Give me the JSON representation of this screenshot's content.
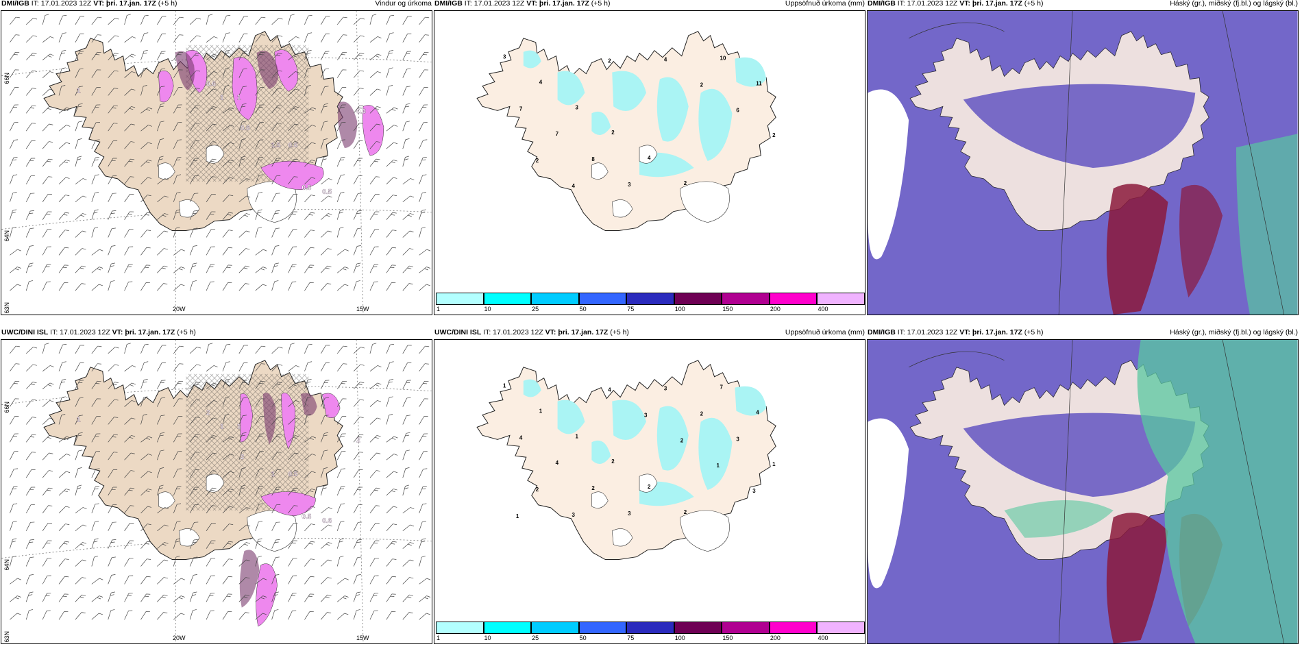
{
  "panels": [
    {
      "source": "DMI/IGB",
      "it": "IT: 17.01.2023 12Z",
      "vt": "VT: þri. 17.jan. 17Z",
      "lead": "(+5 h)",
      "title": "Vindur og úrkoma",
      "kind": "wind",
      "lat_labels": [
        "66N",
        "64N",
        "63N"
      ],
      "lon_labels": [
        "20W",
        "15W"
      ],
      "values": [
        "1",
        "0.6",
        "1",
        "1",
        "0.6",
        "1.5",
        "0.6",
        "0.5",
        "0.5",
        "0.6"
      ]
    },
    {
      "source": "DMI/IGB",
      "it": "IT: 17.01.2023 12Z",
      "vt": "VT: þri. 17.jan. 17Z",
      "lead": "(+5 h)",
      "title": "Uppsöfnuð úrkoma (mm)",
      "kind": "accum",
      "values": [
        "3",
        "4",
        "3",
        "2",
        "4",
        "2",
        "10",
        "11",
        "7",
        "7",
        "8",
        "3",
        "4",
        "2",
        "6",
        "2",
        "2",
        "4",
        "2"
      ]
    },
    {
      "source": "DMI/IGB",
      "it": "IT: 17.01.2023 12Z",
      "vt": "VT: þri. 17.jan. 17Z",
      "lead": "(+5 h)",
      "title": "Háský (gr.), miðský (fj.bl.) og lágský (bl.)",
      "kind": "cloud"
    },
    {
      "source": "UWC/DINI ISL",
      "it": "IT: 17.01.2023 12Z",
      "vt": "VT: þri. 17.jan. 17Z",
      "lead": "(+5 h)",
      "title": "",
      "kind": "wind",
      "lat_labels": [
        "66N",
        "64N",
        "63N"
      ],
      "lon_labels": [
        "20W",
        "15W"
      ],
      "values": [
        "1",
        "2",
        "1",
        "1",
        "2",
        "1",
        "0.5",
        "0.5",
        "0.6",
        "2"
      ]
    },
    {
      "source": "UWC/DINI ISL",
      "it": "IT: 17.01.2023 12Z",
      "vt": "VT: þri. 17.jan. 17Z",
      "lead": "(+5 h)",
      "title": "Uppsöfnuð úrkoma (mm)",
      "kind": "accum",
      "values": [
        "1",
        "1",
        "1",
        "2",
        "2",
        "2",
        "7",
        "4",
        "4",
        "4",
        "2",
        "3",
        "3",
        "2",
        "3",
        "1",
        "2",
        "3",
        "4",
        "3",
        "2",
        "1",
        "3",
        "1"
      ]
    },
    {
      "source": "DMI/IGB",
      "it": "IT: 17.01.2023 12Z",
      "vt": "VT: þri. 17.jan. 17Z",
      "lead": "(+5 h)",
      "title": "Háský (gr.), miðský (fj.bl.) og lágský (bl.)",
      "kind": "cloud"
    }
  ],
  "colorbar": {
    "ticks": [
      "1",
      "10",
      "25",
      "50",
      "75",
      "100",
      "150",
      "200",
      "400"
    ],
    "colors": [
      "#b3ffff",
      "#00ffff",
      "#00ccff",
      "#3366ff",
      "#2b2bbd",
      "#6e0054",
      "#b00091",
      "#ff00cc",
      "#f0b3ff"
    ]
  },
  "colors": {
    "land": "#fbeee2",
    "land_wind": "#ecd9c4",
    "precip_light": "#ee88ee",
    "precip_dark": "#7a3a6e",
    "accum": "#aaf4f4",
    "high_cloud": "#58c8a0",
    "mid_cloud": "#5a4cbf",
    "low_cloud": "#8b1a3c",
    "sea": "#ffffff"
  }
}
